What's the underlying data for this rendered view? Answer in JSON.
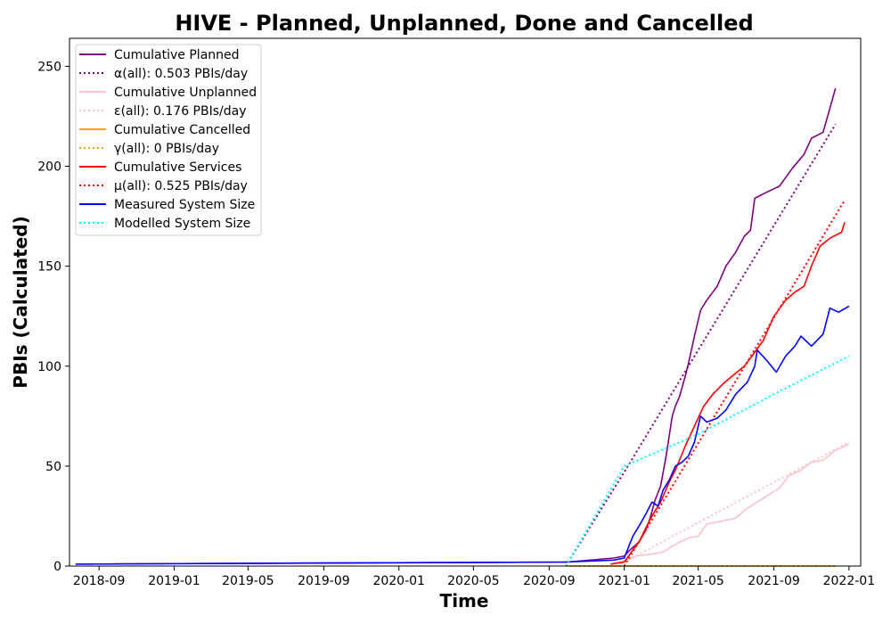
{
  "chart_data": {
    "type": "line",
    "title": "HIVE - Planned, Unplanned, Done  and Cancelled",
    "xlabel": "Time",
    "ylabel": "PBIs (Calculated)",
    "x_range": [
      "2018-07-15",
      "2022-01-20"
    ],
    "ylim": [
      0,
      264
    ],
    "x_ticks": [
      "2018-09",
      "2019-01",
      "2019-05",
      "2019-09",
      "2020-01",
      "2020-05",
      "2020-09",
      "2021-01",
      "2021-05",
      "2021-09",
      "2022-01"
    ],
    "y_ticks": [
      0,
      50,
      100,
      150,
      200,
      250
    ],
    "grid": false,
    "legend_position": "top-left",
    "series": [
      {
        "name": "Cumulative Planned",
        "color": "#800080",
        "style": "solid",
        "points": [
          [
            "2018-07-25",
            1
          ],
          [
            "2020-09-30",
            2
          ],
          [
            "2020-12-15",
            4
          ],
          [
            "2021-01-01",
            5
          ],
          [
            "2021-01-10",
            8
          ],
          [
            "2021-01-25",
            12
          ],
          [
            "2021-02-05",
            18
          ],
          [
            "2021-02-12",
            24
          ],
          [
            "2021-02-20",
            33
          ],
          [
            "2021-03-01",
            40
          ],
          [
            "2021-03-10",
            55
          ],
          [
            "2021-03-20",
            75
          ],
          [
            "2021-03-25",
            80
          ],
          [
            "2021-04-01",
            85
          ],
          [
            "2021-04-10",
            95
          ],
          [
            "2021-04-15",
            101
          ],
          [
            "2021-04-25",
            115
          ],
          [
            "2021-05-05",
            128
          ],
          [
            "2021-05-15",
            133
          ],
          [
            "2021-06-01",
            140
          ],
          [
            "2021-06-15",
            150
          ],
          [
            "2021-07-01",
            157
          ],
          [
            "2021-07-15",
            165
          ],
          [
            "2021-07-25",
            168
          ],
          [
            "2021-08-01",
            184
          ],
          [
            "2021-08-20",
            187
          ],
          [
            "2021-09-10",
            190
          ],
          [
            "2021-10-01",
            199
          ],
          [
            "2021-10-20",
            206
          ],
          [
            "2021-11-01",
            214
          ],
          [
            "2021-11-20",
            217
          ],
          [
            "2021-12-01",
            229
          ],
          [
            "2021-12-10",
            239
          ]
        ]
      },
      {
        "name": "α(all): 0.503 PBIs/day",
        "color": "#800080",
        "style": "dotted",
        "points": [
          [
            "2020-09-28",
            0
          ],
          [
            "2021-01-01",
            47
          ],
          [
            "2021-05-01",
            108
          ],
          [
            "2021-12-10",
            221
          ]
        ]
      },
      {
        "name": "Cumulative Unplanned",
        "color": "#ffc0cb",
        "style": "solid",
        "points": [
          [
            "2020-12-10",
            1
          ],
          [
            "2021-01-05",
            3
          ],
          [
            "2021-01-20",
            5
          ],
          [
            "2021-02-15",
            6
          ],
          [
            "2021-03-05",
            7
          ],
          [
            "2021-03-20",
            10
          ],
          [
            "2021-04-01",
            12
          ],
          [
            "2021-04-15",
            14
          ],
          [
            "2021-05-01",
            15
          ],
          [
            "2021-05-15",
            21
          ],
          [
            "2021-06-01",
            22
          ],
          [
            "2021-07-01",
            24
          ],
          [
            "2021-07-20",
            29
          ],
          [
            "2021-08-10",
            33
          ],
          [
            "2021-08-25",
            36
          ],
          [
            "2021-09-10",
            39
          ],
          [
            "2021-09-25",
            45
          ],
          [
            "2021-10-15",
            48
          ],
          [
            "2021-11-01",
            52
          ],
          [
            "2021-11-20",
            53
          ],
          [
            "2021-12-10",
            58
          ],
          [
            "2022-01-01",
            61
          ]
        ]
      },
      {
        "name": "ε(all): 0.176 PBIs/day",
        "color": "#ffc0cb",
        "style": "dotted",
        "points": [
          [
            "2020-12-20",
            0
          ],
          [
            "2022-01-01",
            62
          ]
        ]
      },
      {
        "name": "Cumulative Cancelled",
        "color": "#ffa500",
        "style": "solid",
        "points": [
          [
            "2020-09-28",
            0
          ],
          [
            "2021-12-10",
            0
          ]
        ]
      },
      {
        "name": "γ(all): 0 PBIs/day",
        "color": "#ffa500",
        "style": "dotted",
        "points": [
          [
            "2020-09-28",
            0
          ],
          [
            "2021-12-10",
            0
          ]
        ]
      },
      {
        "name": "Cumulative Services",
        "color": "#ff0000",
        "style": "solid",
        "points": [
          [
            "2020-12-10",
            1
          ],
          [
            "2021-01-01",
            2
          ],
          [
            "2021-01-15",
            8
          ],
          [
            "2021-01-25",
            12
          ],
          [
            "2021-02-05",
            19
          ],
          [
            "2021-02-15",
            25
          ],
          [
            "2021-03-01",
            32
          ],
          [
            "2021-03-15",
            42
          ],
          [
            "2021-03-25",
            48
          ],
          [
            "2021-04-10",
            60
          ],
          [
            "2021-04-25",
            70
          ],
          [
            "2021-05-10",
            80
          ],
          [
            "2021-05-25",
            86
          ],
          [
            "2021-06-10",
            91
          ],
          [
            "2021-06-25",
            95
          ],
          [
            "2021-07-15",
            100
          ],
          [
            "2021-08-01",
            107
          ],
          [
            "2021-08-15",
            113
          ],
          [
            "2021-09-01",
            125
          ],
          [
            "2021-09-20",
            133
          ],
          [
            "2021-10-05",
            137
          ],
          [
            "2021-10-20",
            140
          ],
          [
            "2021-11-01",
            150
          ],
          [
            "2021-11-15",
            160
          ],
          [
            "2021-12-01",
            164
          ],
          [
            "2021-12-20",
            167
          ],
          [
            "2021-12-25",
            172
          ]
        ]
      },
      {
        "name": "μ(all): 0.525 PBIs/day",
        "color": "#ff0000",
        "style": "dotted",
        "points": [
          [
            "2021-01-01",
            0
          ],
          [
            "2021-12-25",
            183
          ]
        ]
      },
      {
        "name": "Measured System Size",
        "color": "#0000ff",
        "style": "solid",
        "points": [
          [
            "2018-07-25",
            1
          ],
          [
            "2019-09-01",
            1.5
          ],
          [
            "2020-09-28",
            2
          ],
          [
            "2020-12-15",
            3
          ],
          [
            "2021-01-01",
            4
          ],
          [
            "2021-01-15",
            15
          ],
          [
            "2021-01-25",
            20
          ],
          [
            "2021-02-05",
            26
          ],
          [
            "2021-02-15",
            32
          ],
          [
            "2021-02-25",
            30
          ],
          [
            "2021-03-05",
            38
          ],
          [
            "2021-03-15",
            43
          ],
          [
            "2021-03-25",
            50
          ],
          [
            "2021-04-05",
            52
          ],
          [
            "2021-04-15",
            55
          ],
          [
            "2021-04-25",
            62
          ],
          [
            "2021-05-05",
            75
          ],
          [
            "2021-05-15",
            72
          ],
          [
            "2021-06-01",
            74
          ],
          [
            "2021-06-15",
            78
          ],
          [
            "2021-07-01",
            86
          ],
          [
            "2021-07-20",
            92
          ],
          [
            "2021-08-01",
            100
          ],
          [
            "2021-08-05",
            108
          ],
          [
            "2021-08-20",
            103
          ],
          [
            "2021-09-05",
            97
          ],
          [
            "2021-09-20",
            105
          ],
          [
            "2021-10-05",
            110
          ],
          [
            "2021-10-15",
            115
          ],
          [
            "2021-11-01",
            110
          ],
          [
            "2021-11-20",
            116
          ],
          [
            "2021-12-01",
            129
          ],
          [
            "2021-12-15",
            127
          ],
          [
            "2022-01-01",
            130
          ]
        ]
      },
      {
        "name": "Modelled System Size",
        "color": "#00ffff",
        "style": "dotted",
        "points": [
          [
            "2020-09-28",
            0
          ],
          [
            "2021-01-01",
            50
          ],
          [
            "2021-05-01",
            66
          ],
          [
            "2021-09-01",
            86
          ],
          [
            "2022-01-01",
            105
          ]
        ]
      }
    ]
  }
}
